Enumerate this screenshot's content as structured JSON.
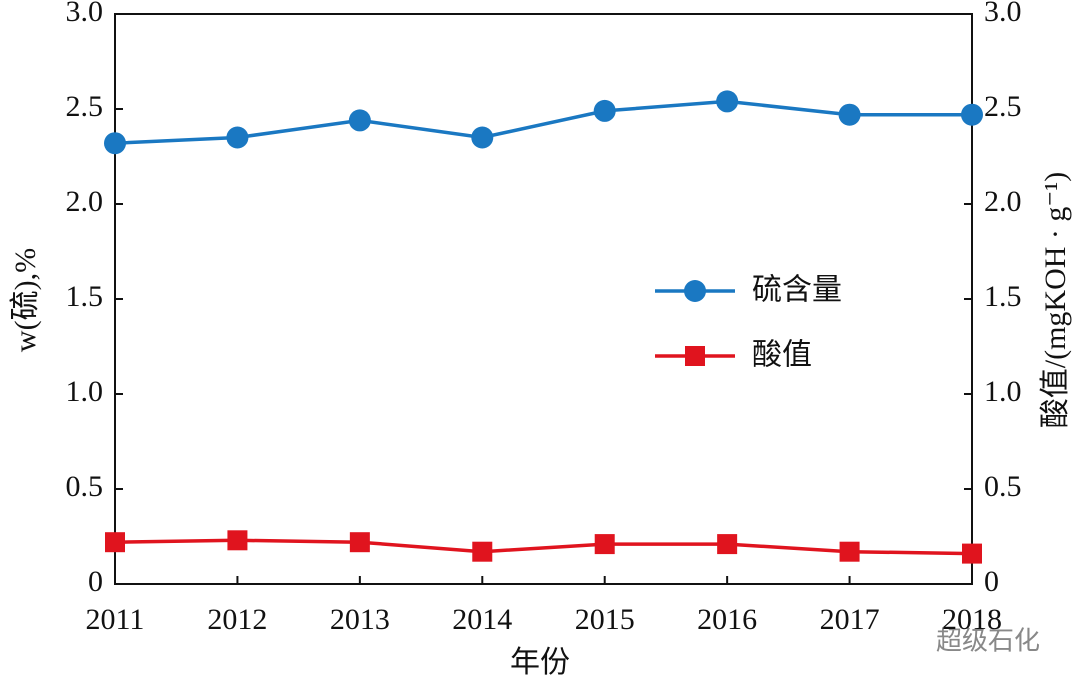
{
  "chart_data": {
    "type": "line",
    "x_label": "年份",
    "y_label": "w(硫),%",
    "y2_label": "酸值/(mgKOH · g⁻¹)",
    "categories": [
      "2011",
      "2012",
      "2013",
      "2014",
      "2015",
      "2016",
      "2017",
      "2018"
    ],
    "series": [
      {
        "name": "硫含量",
        "color": "#1a78c2",
        "marker": "circle",
        "values": [
          2.32,
          2.35,
          2.44,
          2.35,
          2.49,
          2.54,
          2.47,
          2.47
        ]
      },
      {
        "name": "酸值",
        "color": "#e0141e",
        "marker": "square",
        "axis": "y2",
        "values": [
          0.22,
          0.23,
          0.22,
          0.17,
          0.21,
          0.21,
          0.17,
          0.16
        ]
      }
    ],
    "ylim": [
      0,
      3
    ],
    "yticks": [
      0,
      0.5,
      {
        "value": 1,
        "label": "1.0"
      },
      1.5,
      {
        "value": 2,
        "label": "2.0"
      },
      2.5,
      {
        "value": 3,
        "label": "3.0"
      }
    ],
    "y2lim": [
      0,
      3
    ],
    "y2ticks": [
      0,
      0.5,
      {
        "value": 1,
        "label": "1.0"
      },
      1.5,
      {
        "value": 2,
        "label": "2.0"
      },
      2.5,
      {
        "value": 3,
        "label": "3.0"
      }
    ],
    "grid": false,
    "legend": "right",
    "watermark": "超级石化"
  }
}
